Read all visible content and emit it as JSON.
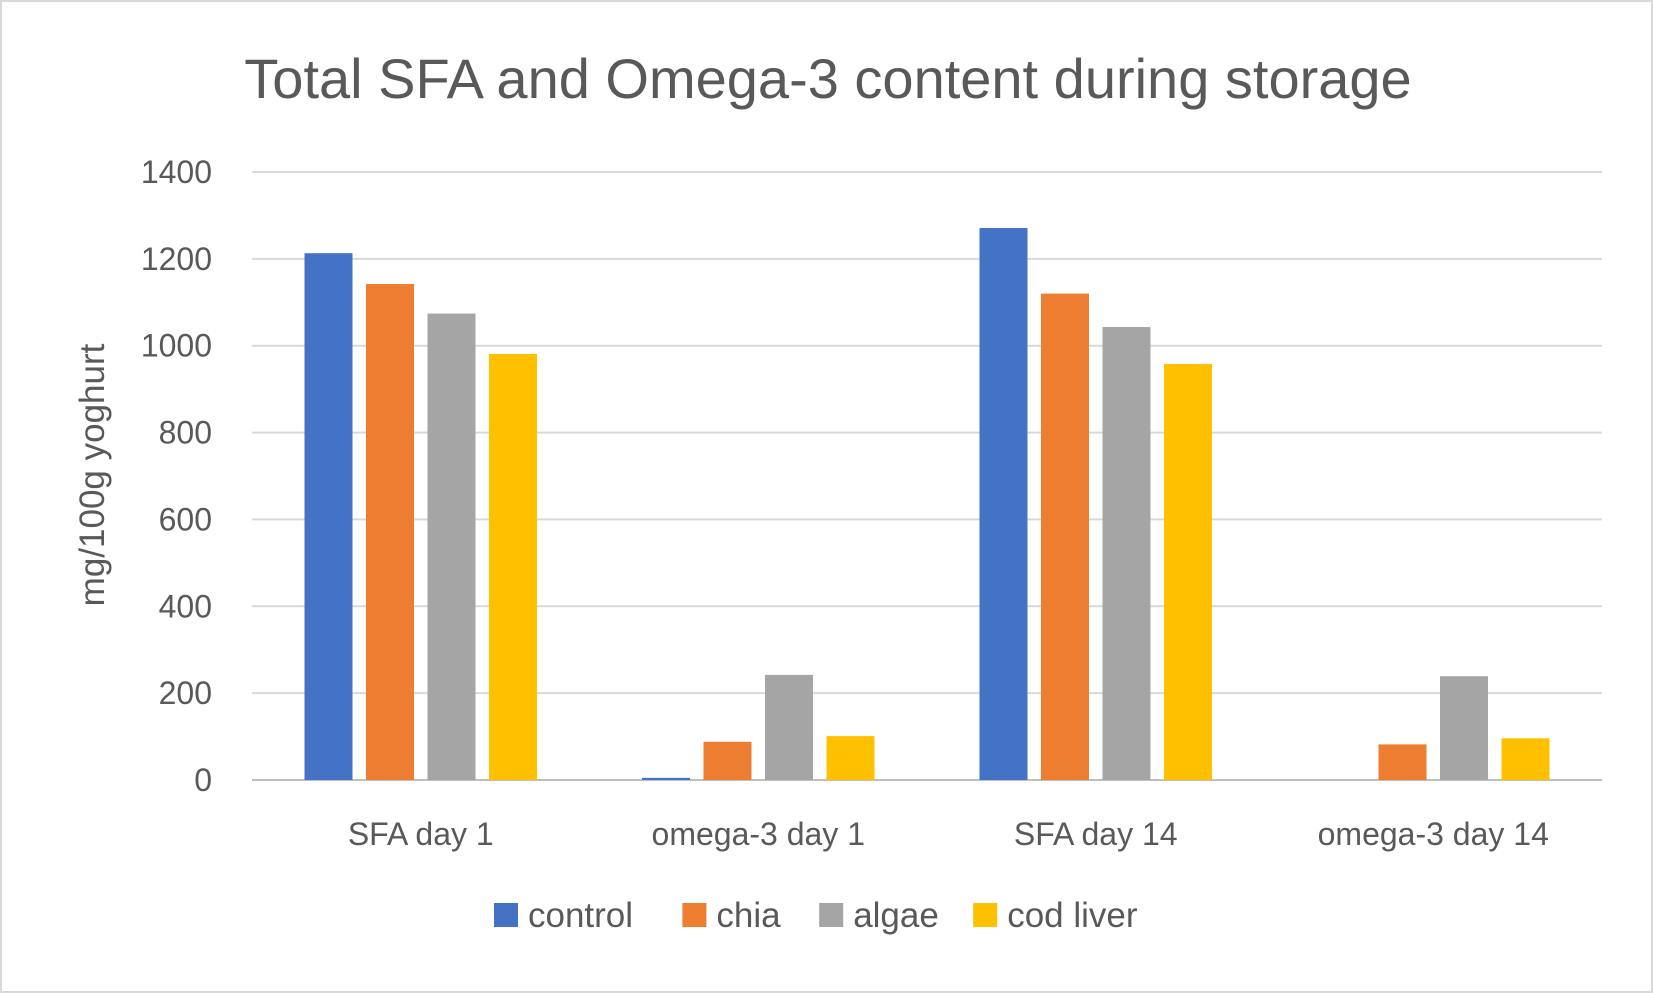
{
  "chart_data": {
    "type": "bar",
    "title": "Total SFA and Omega-3 content during storage",
    "xlabel": "",
    "ylabel": "mg/100g yoghurt",
    "ylim": [
      0,
      1400
    ],
    "yticks": [
      0,
      200,
      400,
      600,
      800,
      1000,
      1200,
      1400
    ],
    "grid": true,
    "legend_position": "bottom",
    "categories": [
      "SFA day 1",
      "omega-3 day 1",
      "SFA day 14",
      "omega-3 day 14"
    ],
    "series": [
      {
        "name": "control",
        "color": "#4472c4",
        "values": [
          1213,
          5,
          1271,
          0
        ]
      },
      {
        "name": "chia",
        "color": "#ed7d31",
        "values": [
          1142,
          88,
          1120,
          82
        ]
      },
      {
        "name": "algae",
        "color": "#a5a5a5",
        "values": [
          1074,
          242,
          1043,
          239
        ]
      },
      {
        "name": "cod liver",
        "color": "#ffc000",
        "values": [
          981,
          101,
          958,
          96
        ]
      }
    ]
  }
}
